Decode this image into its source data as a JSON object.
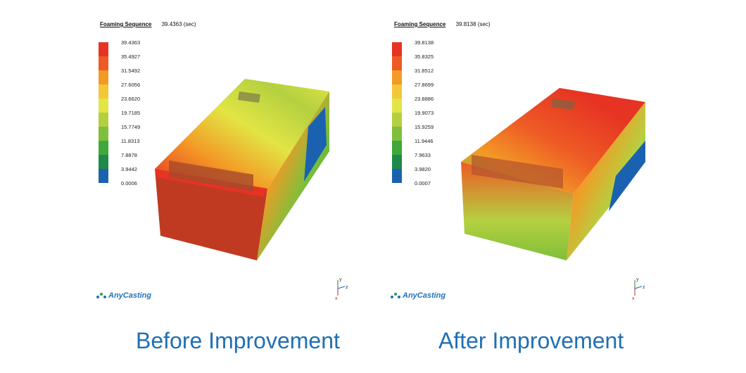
{
  "panels": [
    {
      "header_title": "Foaming Sequence",
      "header_time": "39.4363 (sec)",
      "legend_ticks": [
        "39.4363",
        "35.4927",
        "31.5492",
        "27.6056",
        "23.6620",
        "19.7185",
        "15.7749",
        "11.8313",
        "7.8878",
        "3.9442",
        "0.0006"
      ],
      "logo": "AnyCasting",
      "caption": "Before Improvement"
    },
    {
      "header_title": "Foaming Sequence",
      "header_time": "39.8138 (sec)",
      "legend_ticks": [
        "39.8138",
        "35.8325",
        "31.8512",
        "27.8699",
        "23.8886",
        "19.9073",
        "15.9259",
        "11.9446",
        "7.9633",
        "3.9820",
        "0.0007"
      ],
      "logo": "AnyCasting",
      "caption": "After Improvement"
    }
  ],
  "legend_colors": [
    "#e63323",
    "#ee5a25",
    "#f39a26",
    "#f3c737",
    "#e2e544",
    "#b4d040",
    "#7fbf3a",
    "#3fa83a",
    "#1d8a4a",
    "#1a62b0",
    "#184aa0"
  ],
  "axes_labels": {
    "y": "y",
    "z": "z",
    "x": "x"
  }
}
